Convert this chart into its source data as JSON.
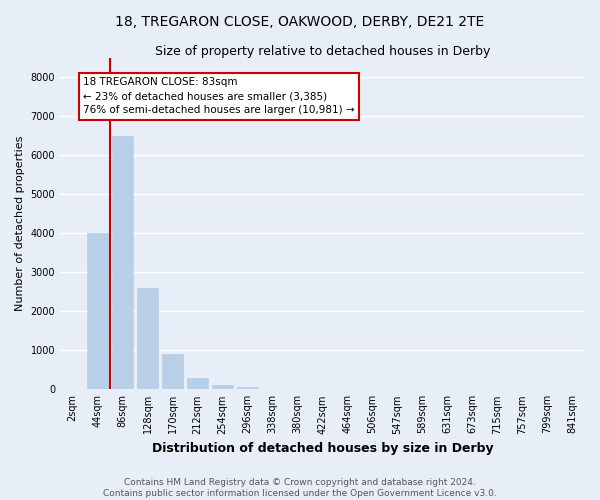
{
  "title": "18, TREGARON CLOSE, OAKWOOD, DERBY, DE21 2TE",
  "subtitle": "Size of property relative to detached houses in Derby",
  "xlabel": "Distribution of detached houses by size in Derby",
  "ylabel": "Number of detached properties",
  "footer_line1": "Contains HM Land Registry data © Crown copyright and database right 2024.",
  "footer_line2": "Contains public sector information licensed under the Open Government Licence v3.0.",
  "bar_labels": [
    "2sqm",
    "44sqm",
    "86sqm",
    "128sqm",
    "170sqm",
    "212sqm",
    "254sqm",
    "296sqm",
    "338sqm",
    "380sqm",
    "422sqm",
    "464sqm",
    "506sqm",
    "547sqm",
    "589sqm",
    "631sqm",
    "673sqm",
    "715sqm",
    "757sqm",
    "799sqm",
    "841sqm"
  ],
  "bar_values": [
    0,
    4000,
    6500,
    2600,
    900,
    300,
    100,
    50,
    0,
    0,
    0,
    0,
    0,
    0,
    0,
    0,
    0,
    0,
    0,
    0,
    0
  ],
  "bar_color": "#b8cfe8",
  "bar_edge_color": "#b8cfe8",
  "highlight_bar_index": 2,
  "highlight_line_color": "#cc0000",
  "annotation_line1": "18 TREGARON CLOSE: 83sqm",
  "annotation_line2": "← 23% of detached houses are smaller (3,385)",
  "annotation_line3": "76% of semi-detached houses are larger (10,981) →",
  "annotation_box_edge_color": "#cc0000",
  "ylim": [
    0,
    8500
  ],
  "yticks": [
    0,
    1000,
    2000,
    3000,
    4000,
    5000,
    6000,
    7000,
    8000
  ],
  "background_color": "#e8eef8",
  "plot_background_color": "#e8eef8",
  "grid_color": "#ffffff",
  "title_fontsize": 10,
  "subtitle_fontsize": 9,
  "xlabel_fontsize": 9,
  "ylabel_fontsize": 8,
  "tick_fontsize": 7,
  "annotation_fontsize": 7.5,
  "footer_fontsize": 6.5
}
